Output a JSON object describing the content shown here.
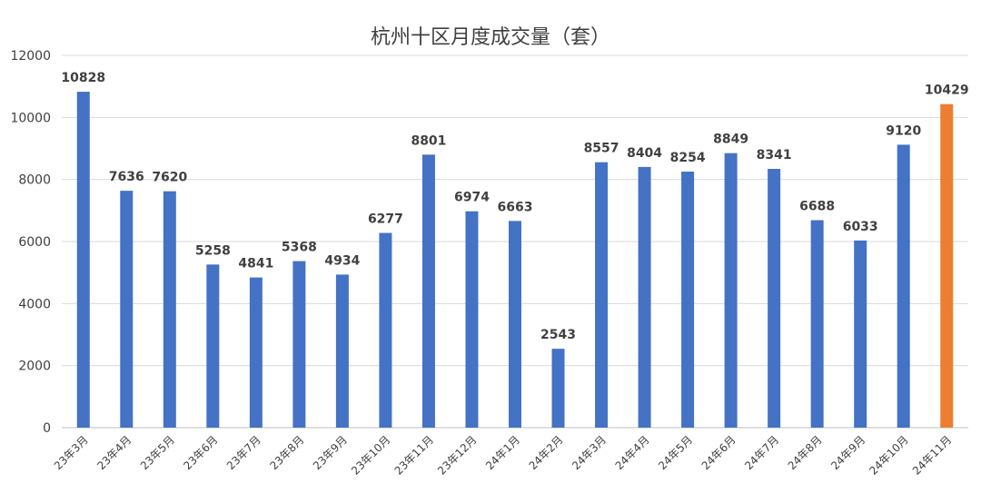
{
  "chart_data": {
    "type": "bar",
    "title": "杭州十区月度成交量（套）",
    "xlabel": "",
    "ylabel": "",
    "ylim": [
      0,
      12000
    ],
    "yticks": [
      0,
      2000,
      4000,
      6000,
      8000,
      10000,
      12000
    ],
    "grid": true,
    "legend": "none",
    "categories": [
      "23年3月",
      "23年4月",
      "23年5月",
      "23年6月",
      "23年7月",
      "23年8月",
      "23年9月",
      "23年10月",
      "23年11月",
      "23年12月",
      "24年1月",
      "24年2月",
      "24年3月",
      "24年4月",
      "24年5月",
      "24年6月",
      "24年7月",
      "24年8月",
      "24年9月",
      "24年10月",
      "24年11月"
    ],
    "values": [
      10828,
      7636,
      7620,
      5258,
      4841,
      5368,
      4934,
      6277,
      8801,
      6974,
      6663,
      2543,
      8557,
      8404,
      8254,
      8849,
      8341,
      6688,
      6033,
      9120,
      10429
    ],
    "bar_color": "#4472C4",
    "highlight_color": "#ED7D31",
    "highlight_index": 20,
    "grid_color": "#D9D9D9",
    "axis_color": "#BFBFBF"
  }
}
